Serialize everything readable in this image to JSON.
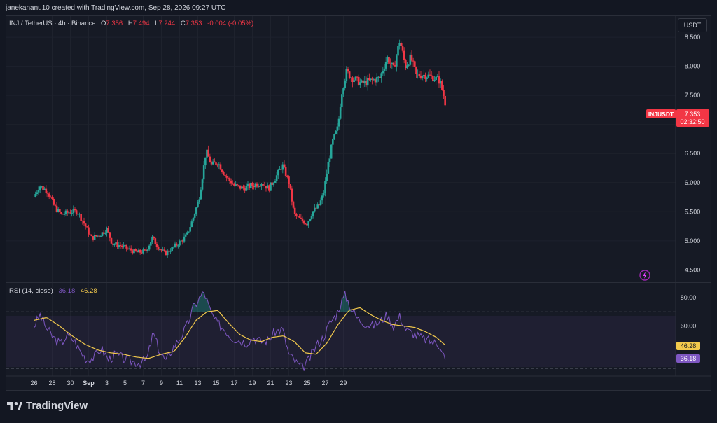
{
  "header": {
    "credit": "janekananu10 created with TradingView.com, Sep 28, 2026 09:27 UTC"
  },
  "legend": {
    "symbol": "INJ / TetherUS · 4h · Binance",
    "open_label": "O",
    "open": "7.356",
    "high_label": "H",
    "high": "7.494",
    "low_label": "L",
    "low": "7.244",
    "close_label": "C",
    "close": "7.353",
    "change": "-0.004 (-0.05%)"
  },
  "currency_button": "USDT",
  "price_tag": {
    "ticker": "INJUSDT",
    "price": "7.353",
    "countdown": "02:32:50"
  },
  "rsi_legend": {
    "label": "RSI (14, close)",
    "rsi": "36.18",
    "ma": "46.28"
  },
  "rsi_tags": {
    "rsi": "36.18",
    "ma": "46.28"
  },
  "brand": "TradingView",
  "colors": {
    "up": "#26a69a",
    "down": "#f23645",
    "rsi": "#7e57c2",
    "rsi_ma": "#f2c94c",
    "background": "#131722",
    "grid": "#1e222d"
  },
  "chart_data": [
    {
      "type": "candlestick",
      "series": [
        {
          "name": "INJUSDT"
        }
      ],
      "x_tick_labels": [
        "26",
        "28",
        "30",
        "Sep",
        "3",
        "5",
        "7",
        "9",
        "11",
        "13",
        "15",
        "17",
        "19",
        "21",
        "23",
        "25",
        "27",
        "29"
      ],
      "y_ticks": [
        4.5,
        5.0,
        5.5,
        6.0,
        6.5,
        7.0,
        7.5,
        8.0,
        8.5
      ],
      "y_tick_labels": [
        "4.500",
        "5.000",
        "5.500",
        "6.000",
        "6.500",
        "7.000",
        "7.500",
        "8.000",
        "8.500"
      ],
      "ylim": [
        4.3,
        8.85
      ],
      "last_price": 7.353,
      "close_path": [
        {
          "day": 0.0,
          "close": 5.75
        },
        {
          "day": 0.6,
          "close": 5.95
        },
        {
          "day": 1.5,
          "close": 5.85
        },
        {
          "day": 2.2,
          "close": 5.6
        },
        {
          "day": 3.0,
          "close": 5.45
        },
        {
          "day": 4.0,
          "close": 5.5
        },
        {
          "day": 4.8,
          "close": 5.5
        },
        {
          "day": 5.5,
          "close": 5.3
        },
        {
          "day": 6.3,
          "close": 5.05
        },
        {
          "day": 7.2,
          "close": 5.1
        },
        {
          "day": 8.0,
          "close": 5.2
        },
        {
          "day": 8.6,
          "close": 4.95
        },
        {
          "day": 9.5,
          "close": 4.92
        },
        {
          "day": 10.5,
          "close": 4.85
        },
        {
          "day": 11.3,
          "close": 4.8
        },
        {
          "day": 12.3,
          "close": 4.82
        },
        {
          "day": 13.0,
          "close": 5.05
        },
        {
          "day": 13.6,
          "close": 4.9
        },
        {
          "day": 14.4,
          "close": 4.78
        },
        {
          "day": 15.4,
          "close": 4.9
        },
        {
          "day": 16.2,
          "close": 5.0
        },
        {
          "day": 16.8,
          "close": 5.1
        },
        {
          "day": 17.4,
          "close": 5.35
        },
        {
          "day": 18.1,
          "close": 5.7
        },
        {
          "day": 18.6,
          "close": 6.2
        },
        {
          "day": 18.9,
          "close": 6.55
        },
        {
          "day": 19.5,
          "close": 6.3
        },
        {
          "day": 20.2,
          "close": 6.35
        },
        {
          "day": 21.1,
          "close": 6.1
        },
        {
          "day": 22.0,
          "close": 5.95
        },
        {
          "day": 23.0,
          "close": 5.9
        },
        {
          "day": 24.0,
          "close": 5.95
        },
        {
          "day": 25.0,
          "close": 6.0
        },
        {
          "day": 25.8,
          "close": 5.9
        },
        {
          "day": 26.6,
          "close": 6.1
        },
        {
          "day": 27.3,
          "close": 6.3
        },
        {
          "day": 28.0,
          "close": 6.0
        },
        {
          "day": 28.6,
          "close": 5.45
        },
        {
          "day": 29.4,
          "close": 5.35
        },
        {
          "day": 30.0,
          "close": 5.3
        },
        {
          "day": 30.6,
          "close": 5.5
        },
        {
          "day": 31.3,
          "close": 5.6
        },
        {
          "day": 31.8,
          "close": 5.8
        },
        {
          "day": 32.3,
          "close": 6.3
        },
        {
          "day": 32.8,
          "close": 6.7
        },
        {
          "day": 33.4,
          "close": 6.95
        },
        {
          "day": 33.8,
          "close": 7.55
        },
        {
          "day": 34.3,
          "close": 7.9
        },
        {
          "day": 35.0,
          "close": 7.8
        },
        {
          "day": 36.0,
          "close": 7.7
        },
        {
          "day": 37.0,
          "close": 7.75
        },
        {
          "day": 38.0,
          "close": 7.8
        },
        {
          "day": 38.8,
          "close": 8.15
        },
        {
          "day": 39.5,
          "close": 7.95
        },
        {
          "day": 40.2,
          "close": 8.45
        },
        {
          "day": 40.8,
          "close": 8.0
        },
        {
          "day": 41.4,
          "close": 8.15
        },
        {
          "day": 42.0,
          "close": 7.85
        },
        {
          "day": 43.0,
          "close": 7.85
        },
        {
          "day": 44.0,
          "close": 7.8
        },
        {
          "day": 44.6,
          "close": 7.75
        },
        {
          "day": 45.0,
          "close": 7.5
        },
        {
          "day": 45.2,
          "close": 7.353
        }
      ]
    },
    {
      "type": "line",
      "series": [
        {
          "name": "RSI"
        },
        {
          "name": "RSI-based MA"
        }
      ],
      "y_ticks": [
        40,
        60,
        80
      ],
      "y_tick_labels": [
        "",
        "60.00",
        "80.00"
      ],
      "ylim": [
        25,
        90
      ],
      "bands": [
        30,
        50,
        70
      ],
      "rsi_path": [
        {
          "day": 0.0,
          "close": 60
        },
        {
          "day": 0.7,
          "close": 68
        },
        {
          "day": 1.4,
          "close": 58
        },
        {
          "day": 2.1,
          "close": 52
        },
        {
          "day": 2.9,
          "close": 47
        },
        {
          "day": 3.6,
          "close": 53
        },
        {
          "day": 4.4,
          "close": 50
        },
        {
          "day": 5.1,
          "close": 42
        },
        {
          "day": 5.8,
          "close": 36
        },
        {
          "day": 6.6,
          "close": 38
        },
        {
          "day": 7.4,
          "close": 44
        },
        {
          "day": 8.2,
          "close": 36
        },
        {
          "day": 9.0,
          "close": 40
        },
        {
          "day": 9.8,
          "close": 37
        },
        {
          "day": 10.7,
          "close": 35
        },
        {
          "day": 11.6,
          "close": 34
        },
        {
          "day": 12.4,
          "close": 36
        },
        {
          "day": 13.1,
          "close": 55
        },
        {
          "day": 13.8,
          "close": 42
        },
        {
          "day": 14.5,
          "close": 35
        },
        {
          "day": 15.3,
          "close": 45
        },
        {
          "day": 16.1,
          "close": 52
        },
        {
          "day": 16.8,
          "close": 60
        },
        {
          "day": 17.5,
          "close": 73
        },
        {
          "day": 18.2,
          "close": 80
        },
        {
          "day": 18.7,
          "close": 84
        },
        {
          "day": 19.4,
          "close": 70
        },
        {
          "day": 20.1,
          "close": 62
        },
        {
          "day": 20.9,
          "close": 58
        },
        {
          "day": 21.7,
          "close": 52
        },
        {
          "day": 22.5,
          "close": 50
        },
        {
          "day": 23.3,
          "close": 48
        },
        {
          "day": 24.1,
          "close": 52
        },
        {
          "day": 24.9,
          "close": 49
        },
        {
          "day": 25.7,
          "close": 50
        },
        {
          "day": 26.5,
          "close": 56
        },
        {
          "day": 27.3,
          "close": 58
        },
        {
          "day": 28.0,
          "close": 40
        },
        {
          "day": 28.8,
          "close": 34
        },
        {
          "day": 29.5,
          "close": 30
        },
        {
          "day": 30.2,
          "close": 36
        },
        {
          "day": 31.0,
          "close": 46
        },
        {
          "day": 31.8,
          "close": 52
        },
        {
          "day": 32.5,
          "close": 62
        },
        {
          "day": 33.2,
          "close": 68
        },
        {
          "day": 33.7,
          "close": 76
        },
        {
          "day": 34.2,
          "close": 82
        },
        {
          "day": 34.9,
          "close": 72
        },
        {
          "day": 35.6,
          "close": 65
        },
        {
          "day": 36.4,
          "close": 62
        },
        {
          "day": 37.2,
          "close": 60
        },
        {
          "day": 38.0,
          "close": 63
        },
        {
          "day": 38.8,
          "close": 68
        },
        {
          "day": 39.5,
          "close": 60
        },
        {
          "day": 40.2,
          "close": 67
        },
        {
          "day": 40.9,
          "close": 57
        },
        {
          "day": 41.6,
          "close": 55
        },
        {
          "day": 42.4,
          "close": 52
        },
        {
          "day": 43.2,
          "close": 50
        },
        {
          "day": 44.0,
          "close": 48
        },
        {
          "day": 44.7,
          "close": 46
        },
        {
          "day": 45.2,
          "close": 36.18
        }
      ],
      "ma_path": [
        {
          "day": 0.0,
          "close": 64
        },
        {
          "day": 1.4,
          "close": 66
        },
        {
          "day": 2.8,
          "close": 60
        },
        {
          "day": 4.2,
          "close": 53
        },
        {
          "day": 5.6,
          "close": 47
        },
        {
          "day": 7.0,
          "close": 43
        },
        {
          "day": 8.4,
          "close": 41
        },
        {
          "day": 9.8,
          "close": 40
        },
        {
          "day": 11.2,
          "close": 38
        },
        {
          "day": 12.6,
          "close": 37
        },
        {
          "day": 14.0,
          "close": 40
        },
        {
          "day": 15.4,
          "close": 42
        },
        {
          "day": 16.6,
          "close": 52
        },
        {
          "day": 17.8,
          "close": 64
        },
        {
          "day": 19.0,
          "close": 70
        },
        {
          "day": 20.2,
          "close": 71
        },
        {
          "day": 21.4,
          "close": 62
        },
        {
          "day": 22.6,
          "close": 54
        },
        {
          "day": 23.8,
          "close": 50
        },
        {
          "day": 25.0,
          "close": 49
        },
        {
          "day": 26.2,
          "close": 52
        },
        {
          "day": 27.4,
          "close": 53
        },
        {
          "day": 28.6,
          "close": 49
        },
        {
          "day": 29.8,
          "close": 41
        },
        {
          "day": 31.0,
          "close": 40
        },
        {
          "day": 32.2,
          "close": 48
        },
        {
          "day": 33.4,
          "close": 61
        },
        {
          "day": 34.6,
          "close": 71
        },
        {
          "day": 35.8,
          "close": 73
        },
        {
          "day": 37.0,
          "close": 68
        },
        {
          "day": 38.2,
          "close": 64
        },
        {
          "day": 39.4,
          "close": 61
        },
        {
          "day": 40.6,
          "close": 60
        },
        {
          "day": 41.8,
          "close": 59
        },
        {
          "day": 43.0,
          "close": 56
        },
        {
          "day": 44.2,
          "close": 52
        },
        {
          "day": 45.2,
          "close": 46.28
        }
      ]
    }
  ]
}
